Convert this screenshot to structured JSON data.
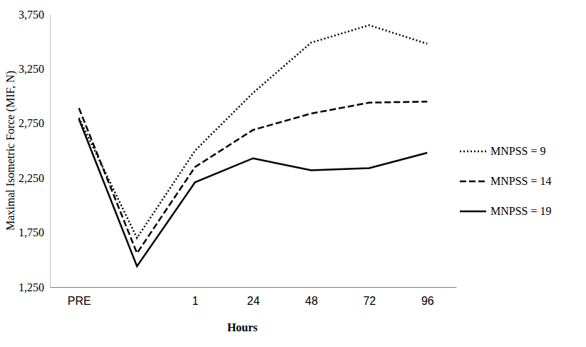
{
  "chart_data": {
    "type": "line",
    "x_label": "Hours",
    "y_label": "Maximal Isometric Force (MIF, N)",
    "categories": [
      "PRE",
      null,
      "1",
      "24",
      "48",
      "72",
      "96"
    ],
    "series": [
      {
        "name": "MNPSS = 9",
        "color": "#000000",
        "line_style": "dotted",
        "values": [
          2800,
          1700,
          2500,
          3030,
          3490,
          3650,
          3480
        ]
      },
      {
        "name": "MNPSS = 14",
        "color": "#000000",
        "line_style": "dashed",
        "values": [
          2890,
          1560,
          2350,
          2690,
          2840,
          2940,
          2950
        ]
      },
      {
        "name": "MNPSS = 19",
        "color": "#000000",
        "line_style": "solid",
        "values": [
          2790,
          1440,
          2210,
          2430,
          2320,
          2340,
          2480
        ]
      }
    ],
    "ylim": [
      1250,
      3750
    ],
    "yticks": [
      {
        "value": 1250,
        "label": "1,250"
      },
      {
        "value": 1750,
        "label": "1,750"
      },
      {
        "value": 2250,
        "label": "2,250"
      },
      {
        "value": 2750,
        "label": "2,750"
      },
      {
        "value": 3250,
        "label": "3,250"
      },
      {
        "value": 3750,
        "label": "3,750"
      }
    ],
    "grid": false,
    "legend": "right"
  }
}
